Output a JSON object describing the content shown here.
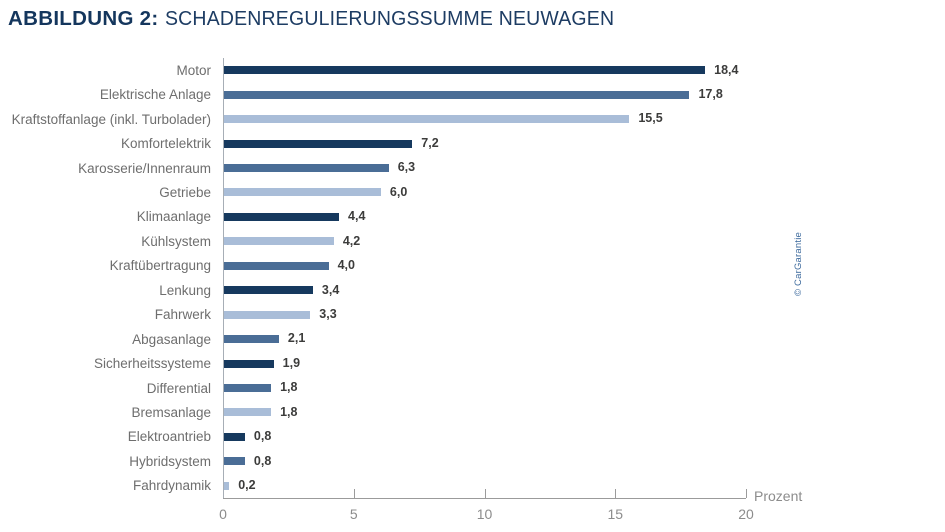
{
  "title": {
    "label": "ABBILDUNG 2:",
    "text": "SCHADENREGULIERUNGSSUMME NEUWAGEN"
  },
  "credit": "© CarGarantie",
  "chart_data": {
    "type": "bar",
    "orientation": "horizontal",
    "title": "ABBILDUNG 2: SCHADENREGULIERUNGSSUMME NEUWAGEN",
    "xlabel": "Prozent",
    "xlim": [
      0,
      20
    ],
    "xticks": [
      0,
      5,
      10,
      15,
      20
    ],
    "grid": false,
    "legend": "none",
    "categories": [
      "Motor",
      "Elektrische Anlage",
      "Kraftstoffanlage (inkl. Turbolader)",
      "Komfortelektrik",
      "Karosserie/Innenraum",
      "Getriebe",
      "Klimaanlage",
      "Kühlsystem",
      "Kraftübertragung",
      "Lenkung",
      "Fahrwerk",
      "Abgasanlage",
      "Sicherheitssysteme",
      "Differential",
      "Bremsanlage",
      "Elektroantrieb",
      "Hybridsystem",
      "Fahrdynamik"
    ],
    "values": [
      18.4,
      17.8,
      15.5,
      7.2,
      6.3,
      6.0,
      4.4,
      4.2,
      4.0,
      3.4,
      3.3,
      2.1,
      1.9,
      1.8,
      1.8,
      0.8,
      0.8,
      0.2
    ],
    "value_labels": [
      "18,4",
      "17,8",
      "15,5",
      "7,2",
      "6,3",
      "6,0",
      "4,4",
      "4,2",
      "4,0",
      "3,4",
      "3,3",
      "2,1",
      "1,9",
      "1,8",
      "1,8",
      "0,8",
      "0,8",
      "0,2"
    ],
    "bar_color_keys": [
      "dark",
      "medium",
      "light",
      "dark",
      "medium",
      "light",
      "dark",
      "light",
      "medium",
      "dark",
      "light",
      "medium",
      "dark",
      "medium",
      "light",
      "dark",
      "medium",
      "light"
    ],
    "colors": {
      "dark": "#16395e",
      "medium": "#4a6d96",
      "light": "#a9bdd8",
      "title_navy": "#14365d",
      "label_gray": "#6e6e6e",
      "value_gray": "#3c3c3b",
      "axis_gray": "#9b9b9b",
      "credit_blue": "#39679b"
    }
  }
}
